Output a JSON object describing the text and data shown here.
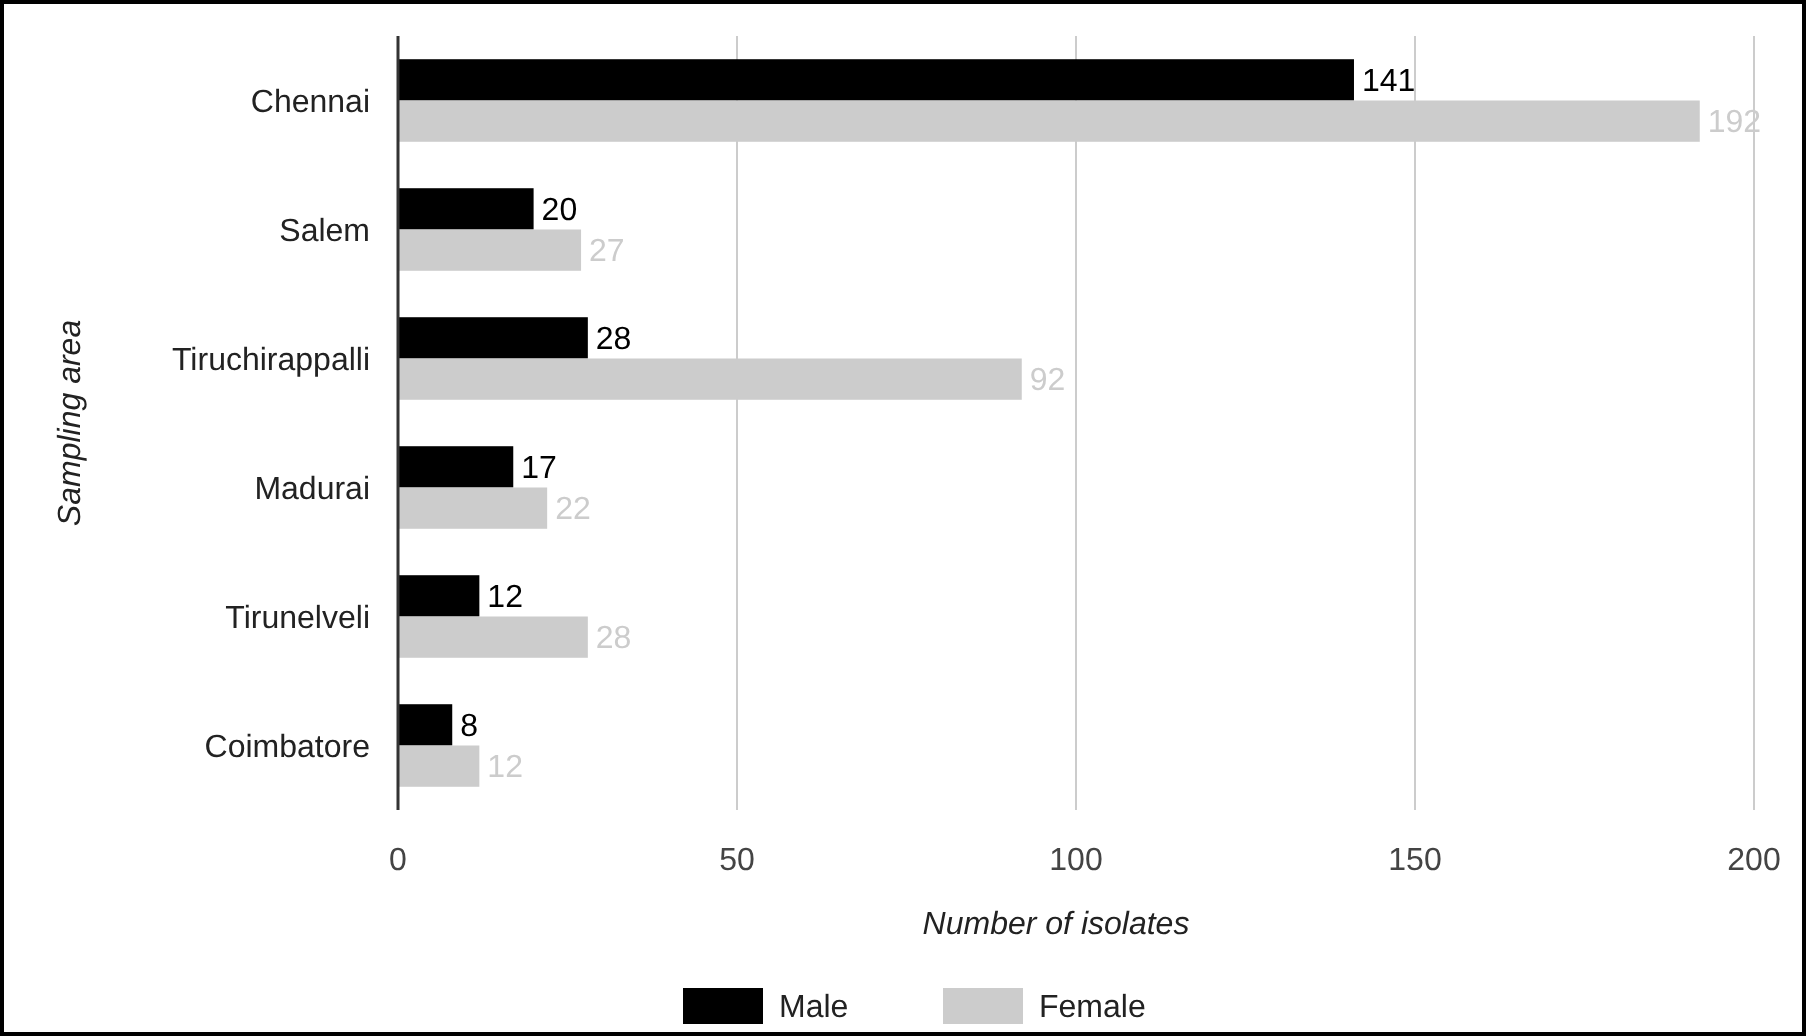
{
  "chart_data": {
    "type": "bar",
    "orientation": "horizontal",
    "xlabel": "Number of isolates",
    "ylabel": "Sampling area",
    "categories": [
      "Chennai",
      "Salem",
      "Tiruchirappalli",
      "Madurai",
      "Tirunelveli",
      "Coimbatore"
    ],
    "series": [
      {
        "name": "Male",
        "color": "#000000",
        "values": [
          141,
          20,
          28,
          17,
          12,
          8
        ]
      },
      {
        "name": "Female",
        "color": "#cccccc",
        "values": [
          192,
          27,
          92,
          22,
          28,
          12
        ]
      }
    ],
    "xlim": [
      0,
      200
    ],
    "xticks": [
      0,
      50,
      100,
      150,
      200
    ],
    "grid": "x",
    "data_labels": true,
    "legend": "bottom"
  }
}
